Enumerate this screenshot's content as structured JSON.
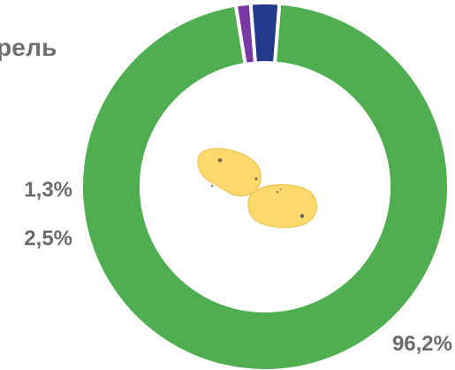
{
  "chart_data": {
    "type": "pie",
    "title": "рель",
    "slices": [
      {
        "label": "96,2%",
        "value": 96.2,
        "color": "#4fae4f"
      },
      {
        "label": "1,3%",
        "value": 1.3,
        "color": "#7a3aa6"
      },
      {
        "label": "2,5%",
        "value": 2.5,
        "color": "#233a8c"
      }
    ],
    "center_icon": "potato-icon"
  }
}
